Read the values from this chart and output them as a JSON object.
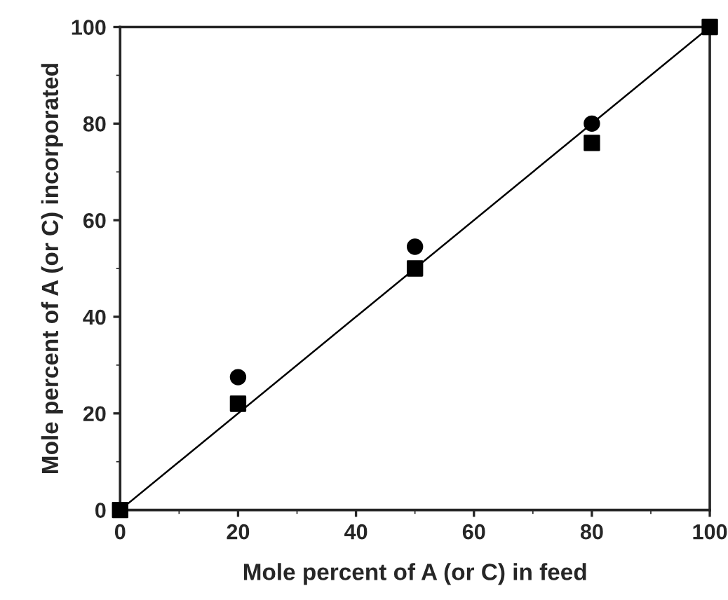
{
  "chart_data": {
    "type": "scatter",
    "xlabel": "Mole percent of A (or C) in feed",
    "ylabel": "Mole percent of A (or C) incorporated",
    "x": [
      0,
      20,
      50,
      80,
      100
    ],
    "series": [
      {
        "marker": "circle",
        "color": "#000000",
        "x": [
          20,
          50,
          80
        ],
        "values": [
          27.5,
          54.5,
          80
        ]
      },
      {
        "marker": "square",
        "color": "#000000",
        "values": [
          0,
          22,
          50,
          76,
          100
        ]
      },
      {
        "type": "line",
        "marker": "none",
        "color": "#000000",
        "x": [
          0,
          100
        ],
        "values": [
          0,
          100
        ]
      }
    ],
    "xlim": [
      0,
      100
    ],
    "ylim": [
      0,
      100
    ],
    "xticks": [
      0,
      20,
      40,
      60,
      80,
      100
    ],
    "yticks": [
      0,
      20,
      40,
      60,
      80,
      100
    ],
    "grid": false,
    "legend": false
  }
}
